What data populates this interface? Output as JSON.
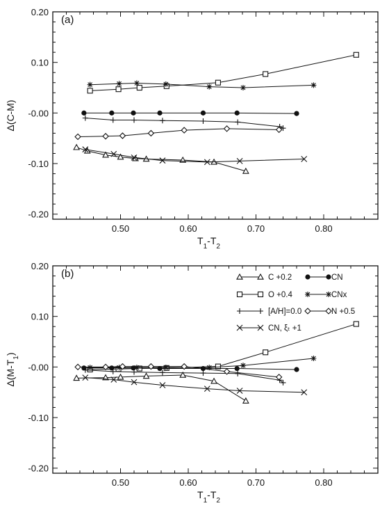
{
  "chart_data": [
    {
      "type": "line",
      "panel_label": "(a)",
      "xlabel": "T1-T2",
      "ylabel": "Δ(C-M)",
      "xlim": [
        0.4,
        0.88
      ],
      "ylim": [
        -0.21,
        0.2
      ],
      "xticks": [
        "0.50",
        "0.60",
        "0.70",
        "0.80"
      ],
      "yticks": [
        "0.20",
        "0.10",
        "-0.00",
        "-0.10",
        "-0.20"
      ],
      "grid": false,
      "series": [
        {
          "name": "C +0.2",
          "marker": "triangle",
          "x": [
            0.435,
            0.451,
            0.478,
            0.5,
            0.522,
            0.538,
            0.592,
            0.638,
            0.685
          ],
          "y": [
            -0.068,
            -0.075,
            -0.083,
            -0.087,
            -0.09,
            -0.091,
            -0.093,
            -0.097,
            -0.115
          ]
        },
        {
          "name": "O +0.4",
          "marker": "square",
          "x": [
            0.455,
            0.497,
            0.528,
            0.568,
            0.644,
            0.714,
            0.848
          ],
          "y": [
            0.044,
            0.047,
            0.05,
            0.053,
            0.06,
            0.077,
            0.115
          ]
        },
        {
          "name": "[A/H]=0.0",
          "marker": "plus",
          "x": [
            0.448,
            0.489,
            0.52,
            0.562,
            0.622,
            0.673,
            0.735,
            0.74
          ],
          "y": [
            -0.01,
            -0.014,
            -0.014,
            -0.015,
            -0.016,
            -0.018,
            -0.027,
            -0.03
          ]
        },
        {
          "name": "CN, ξt +1",
          "marker": "x",
          "x": [
            0.448,
            0.49,
            0.52,
            0.562,
            0.628,
            0.676,
            0.771
          ],
          "y": [
            -0.072,
            -0.081,
            -0.088,
            -0.094,
            -0.097,
            -0.095,
            -0.091
          ]
        },
        {
          "name": "CN",
          "marker": "filled-circle",
          "x": [
            0.446,
            0.487,
            0.519,
            0.558,
            0.622,
            0.672,
            0.76
          ],
          "y": [
            0.0,
            0.0,
            0.0,
            0.0,
            0.0,
            0.0,
            -0.001
          ]
        },
        {
          "name": "CNx",
          "marker": "asterisk",
          "x": [
            0.455,
            0.498,
            0.524,
            0.567,
            0.631,
            0.681,
            0.785
          ],
          "y": [
            0.056,
            0.058,
            0.059,
            0.057,
            0.052,
            0.05,
            0.055
          ]
        },
        {
          "name": "N +0.5",
          "marker": "diamond",
          "x": [
            0.437,
            0.478,
            0.503,
            0.545,
            0.594,
            0.657,
            0.734
          ],
          "y": [
            -0.047,
            -0.046,
            -0.045,
            -0.04,
            -0.034,
            -0.031,
            -0.033
          ]
        }
      ]
    },
    {
      "type": "line",
      "panel_label": "(b)",
      "xlabel": "T1-T2",
      "ylabel": "Δ(M-T1)",
      "xlim": [
        0.4,
        0.88
      ],
      "ylim": [
        -0.21,
        0.2
      ],
      "xticks": [
        "0.50",
        "0.60",
        "0.70",
        "0.80"
      ],
      "yticks": [
        "0.20",
        "0.10",
        "-0.00",
        "-0.10",
        "-0.20"
      ],
      "grid": false,
      "legend": {
        "placement": "top-right",
        "entries": [
          {
            "label": "C +0.2",
            "marker": "triangle"
          },
          {
            "label": "CN",
            "marker": "filled-circle"
          },
          {
            "label": "O +0.4",
            "marker": "square"
          },
          {
            "label": "CNx",
            "marker": "asterisk"
          },
          {
            "label": "[A/H]=0.0",
            "marker": "plus"
          },
          {
            "label": "N +0.5",
            "marker": "diamond"
          },
          {
            "label": "CN, ξt +1",
            "marker": "x"
          }
        ]
      },
      "series": [
        {
          "name": "C +0.2",
          "marker": "triangle",
          "x": [
            0.435,
            0.478,
            0.5,
            0.538,
            0.592,
            0.638,
            0.685
          ],
          "y": [
            -0.022,
            -0.021,
            -0.02,
            -0.018,
            -0.016,
            -0.028,
            -0.067
          ]
        },
        {
          "name": "O +0.4",
          "marker": "square",
          "x": [
            0.455,
            0.497,
            0.528,
            0.568,
            0.644,
            0.714,
            0.848
          ],
          "y": [
            -0.005,
            -0.004,
            -0.003,
            -0.002,
            0.001,
            0.029,
            0.085
          ]
        },
        {
          "name": "[A/H]=0.0",
          "marker": "plus",
          "x": [
            0.448,
            0.489,
            0.52,
            0.562,
            0.622,
            0.673,
            0.735,
            0.74
          ],
          "y": [
            -0.006,
            -0.009,
            -0.01,
            -0.011,
            -0.012,
            -0.013,
            -0.026,
            -0.031
          ]
        },
        {
          "name": "CN, ξt +1",
          "marker": "x",
          "x": [
            0.448,
            0.49,
            0.52,
            0.562,
            0.628,
            0.676,
            0.771
          ],
          "y": [
            -0.021,
            -0.025,
            -0.03,
            -0.036,
            -0.043,
            -0.047,
            -0.05
          ]
        },
        {
          "name": "CN",
          "marker": "filled-circle",
          "x": [
            0.446,
            0.487,
            0.519,
            0.558,
            0.622,
            0.672,
            0.76
          ],
          "y": [
            -0.002,
            -0.002,
            -0.002,
            -0.003,
            -0.003,
            -0.003,
            -0.005
          ]
        },
        {
          "name": "CNx",
          "marker": "asterisk",
          "x": [
            0.455,
            0.498,
            0.524,
            0.567,
            0.631,
            0.681,
            0.785
          ],
          "y": [
            -0.001,
            -0.001,
            -0.001,
            -0.001,
            -0.001,
            0.003,
            0.017
          ]
        },
        {
          "name": "N +0.5",
          "marker": "diamond",
          "x": [
            0.437,
            0.478,
            0.503,
            0.545,
            0.594,
            0.657,
            0.734
          ],
          "y": [
            0.0,
            0.0,
            0.001,
            0.001,
            0.001,
            -0.009,
            -0.02
          ]
        }
      ]
    }
  ]
}
